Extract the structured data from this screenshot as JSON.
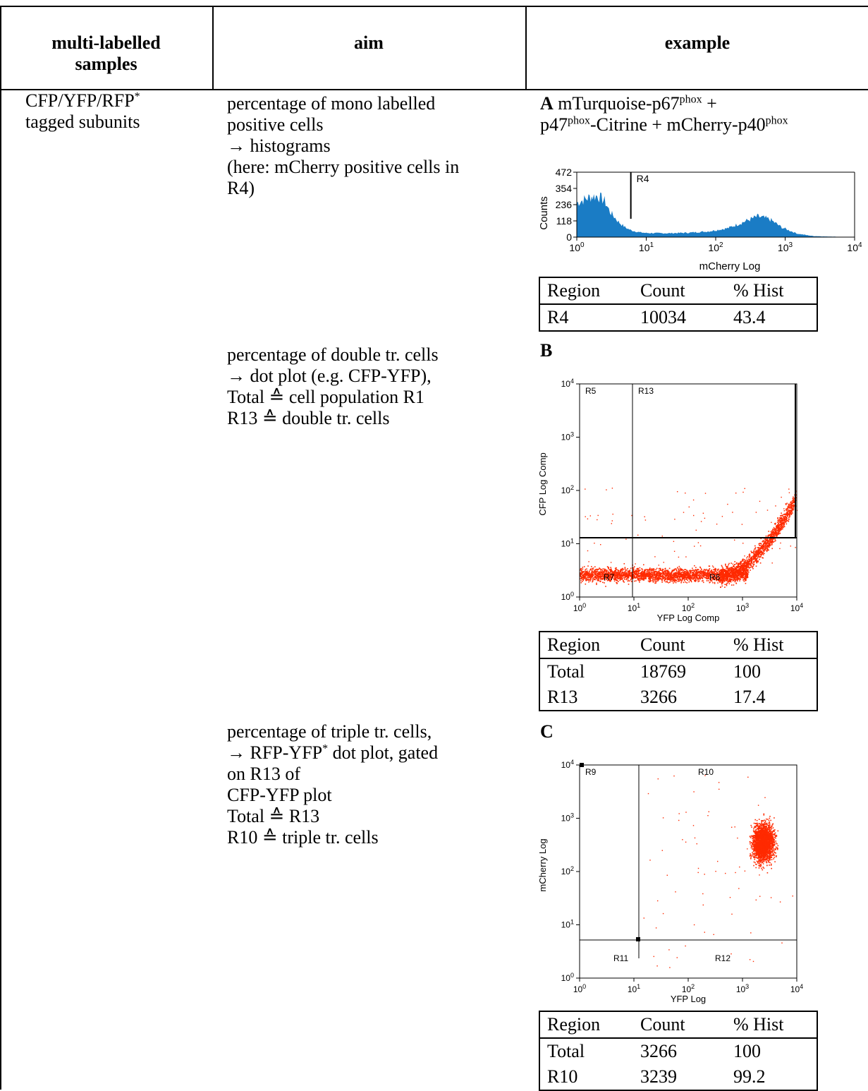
{
  "header": {
    "col1_line1": "multi-labelled",
    "col1_line2": "samples",
    "col2": "aim",
    "col3": "example"
  },
  "sample": {
    "line1": "CFP/YFP/RFP",
    "line1_sup": "*",
    "line2": "tagged subunits"
  },
  "aims": [
    {
      "lines": [
        "percentage of mono labelled",
        "positive cells",
        "→ histograms",
        "(here: mCherry positive cells in",
        "R4)"
      ]
    },
    {
      "lines": [
        "percentage of double tr. cells",
        "→ dot plot (e.g. CFP-YFP),",
        "Total ≙ cell population R1",
        "R13 ≙ double tr. cells"
      ]
    },
    {
      "line1": "percentage of triple tr. cells,",
      "line2a": "→ RFP-YFP",
      "line2sup": "*",
      "line2b": " dot plot, gated",
      "rest": [
        "on R13 of",
        "CFP-YFP plot",
        "Total ≙ R13",
        "R10 ≙ triple tr. cells"
      ]
    }
  ],
  "panels": {
    "A": {
      "letter": "A",
      "cap1a": " mTurquoise-p67",
      "cap1sup": "phox",
      "cap1b": " +",
      "cap2a": "p47",
      "cap2sup": "phox",
      "cap2b": "-Citrine + mCherry-p40",
      "cap2sup2": "phox"
    },
    "B": {
      "letter": "B"
    },
    "C": {
      "letter": "C"
    }
  },
  "chart_data": [
    {
      "type": "area",
      "ylabel": "Counts",
      "xlabel": "mCherry Log",
      "x_scale": "log",
      "xlim": [
        1,
        10000
      ],
      "ylim": [
        0,
        472
      ],
      "yticks": [
        "472",
        "354",
        "236",
        "118",
        "0"
      ],
      "xticks": [
        "10",
        "10",
        "10",
        "10",
        "10"
      ],
      "xtick_exp": [
        "0",
        "1",
        "2",
        "3",
        "4"
      ],
      "gate_label": "R4",
      "gate_x": 6,
      "color": "#1a7cc5",
      "x": [
        1,
        1.3,
        1.6,
        2,
        2.5,
        3,
        4,
        5,
        6,
        8,
        10,
        20,
        40,
        80,
        150,
        250,
        400,
        600,
        900,
        1500,
        2500,
        4000,
        7000,
        10000
      ],
      "y": [
        250,
        275,
        295,
        300,
        265,
        185,
        110,
        70,
        50,
        35,
        30,
        28,
        32,
        42,
        65,
        110,
        150,
        130,
        70,
        25,
        8,
        4,
        2,
        0
      ]
    },
    {
      "type": "scatter",
      "xlabel": "YFP Log Comp",
      "ylabel": "CFP Log Comp",
      "x_scale": "log",
      "y_scale": "log",
      "xlim": [
        1,
        10000
      ],
      "ylim": [
        1,
        10000
      ],
      "color": "#ff2a00",
      "region_labels": [
        "R5",
        "R13",
        "R7",
        "R6"
      ]
    },
    {
      "type": "scatter",
      "xlabel": "YFP Log",
      "ylabel": "mCherry Log",
      "x_scale": "log",
      "y_scale": "log",
      "xlim": [
        1,
        10000
      ],
      "ylim": [
        1,
        10000
      ],
      "color": "#ff2a00",
      "region_labels": [
        "R9",
        "R10",
        "R11",
        "R12"
      ]
    }
  ],
  "stats": [
    {
      "headers": [
        "Region",
        "Count",
        "% Hist"
      ],
      "rows": [
        [
          "R4",
          "10034",
          "43.4"
        ]
      ]
    },
    {
      "headers": [
        "Region",
        "Count",
        "% Hist"
      ],
      "rows": [
        [
          "Total",
          "18769",
          "100"
        ],
        [
          "R13",
          "3266",
          "17.4"
        ]
      ]
    },
    {
      "headers": [
        "Region",
        "Count",
        "% Hist"
      ],
      "rows": [
        [
          "Total",
          "3266",
          "100"
        ],
        [
          "R10",
          "3239",
          "99.2"
        ]
      ]
    }
  ]
}
